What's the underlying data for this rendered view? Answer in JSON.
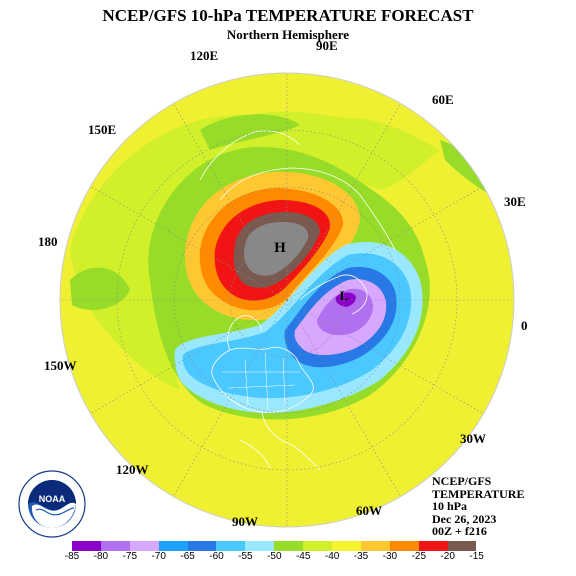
{
  "title": "NCEP/GFS 10-hPa TEMPERATURE FORECAST",
  "subtitle": "Northern Hemisphere",
  "longitude_labels": {
    "e90": "90E",
    "e120": "120E",
    "e60": "60E",
    "e150": "150E",
    "e30": "30E",
    "lon180": "180",
    "lon0": "0",
    "w150": "150W",
    "w30": "30W",
    "w120": "120W",
    "w60": "60W",
    "w90": "90W"
  },
  "map_labels": {
    "high": "H",
    "low": "L"
  },
  "info": {
    "line1": "NCEP/GFS",
    "line2": "TEMPERATURE",
    "line3": "10 hPa",
    "line4": "Dec 26, 2023",
    "line5": "00Z + f216"
  },
  "logo": {
    "name": "NOAA",
    "ring_text": "NATIONAL OCEANIC AND ATMOSPHERIC ADMINISTRATION · U.S. DEPARTMENT OF COMMERCE"
  },
  "colorbar": {
    "ticks": [
      "-85",
      "-80",
      "-75",
      "-70",
      "-65",
      "-60",
      "-55",
      "-50",
      "-45",
      "-40",
      "-35",
      "-30",
      "-25",
      "-20",
      "-15"
    ],
    "colors": [
      "#8a00c8",
      "#b070f0",
      "#d8a8ff",
      "#1ea0ff",
      "#2878e6",
      "#4ac8ff",
      "#9ae8ff",
      "#96dc28",
      "#d2f02a",
      "#f5f52d",
      "#ffc832",
      "#ff8a00",
      "#f01414",
      "#7a5a50"
    ]
  }
}
